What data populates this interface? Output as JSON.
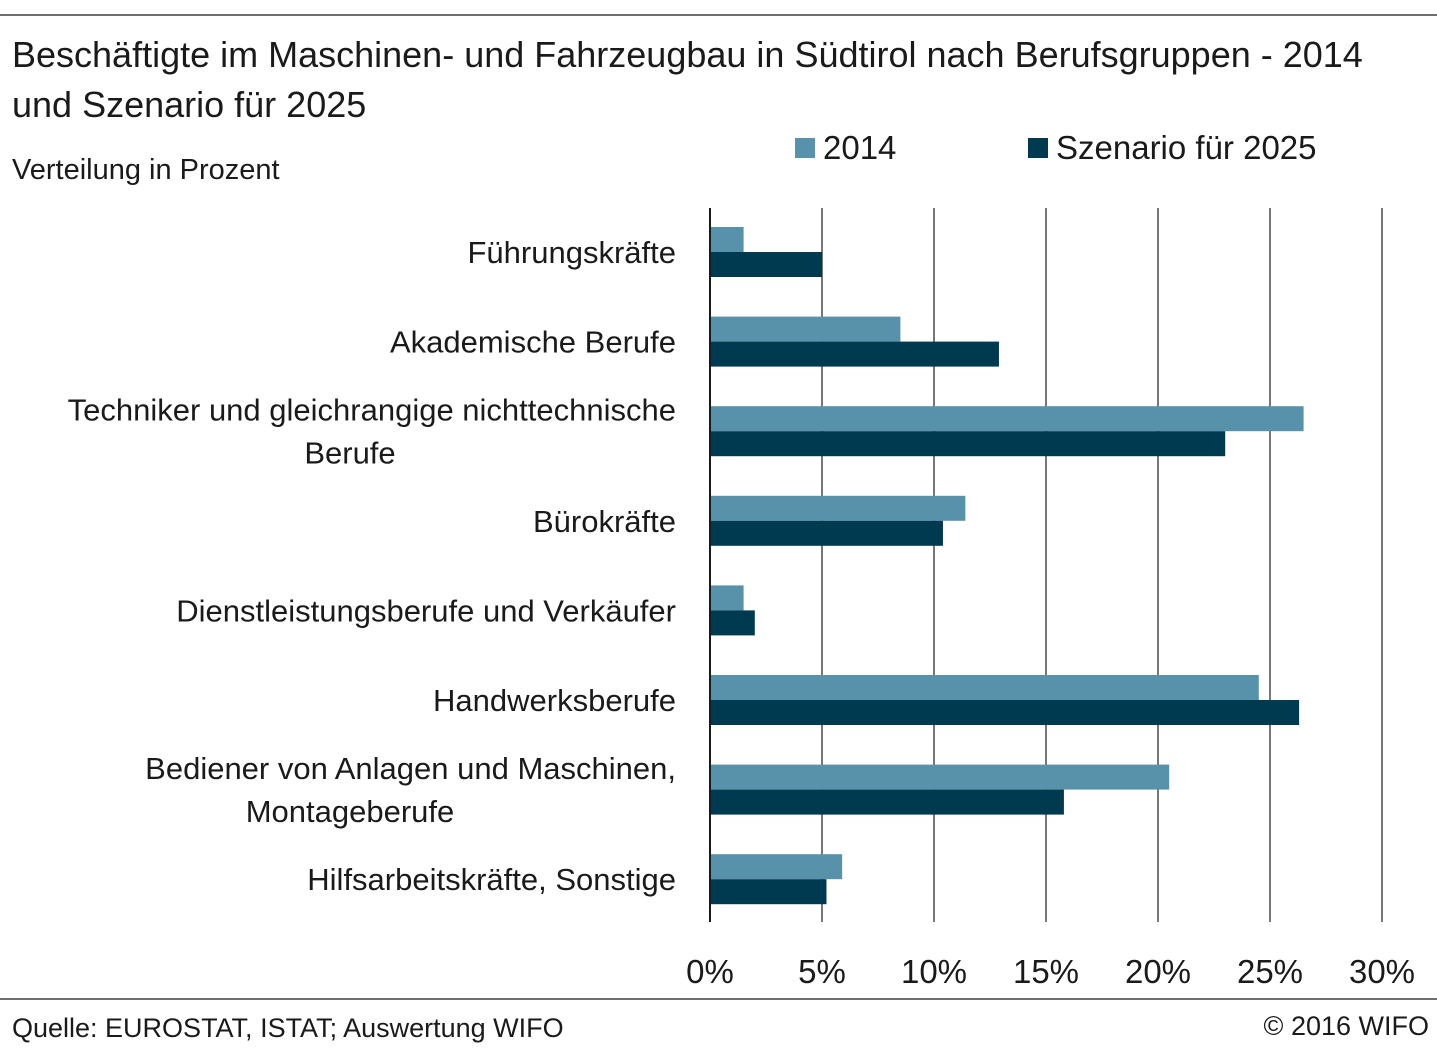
{
  "header": {
    "title": "Beschäftigte im Maschinen- und Fahrzeugbau in Südtirol nach Berufsgruppen - 2014 und Szenario für 2025",
    "subtitle": "Verteilung in Prozent"
  },
  "footer": {
    "source": "Quelle: EUROSTAT, ISTAT; Auswertung WIFO",
    "copyright": "© 2016 WIFO"
  },
  "colors": {
    "series_2014": "#5892aa",
    "series_2025": "#003a50",
    "grid": "#4a4a4a",
    "rule": "#6f6f6f"
  },
  "chart_data": {
    "type": "bar",
    "orientation": "horizontal",
    "title": "Beschäftigte im Maschinen- und Fahrzeugbau in Südtirol nach Berufsgruppen - 2014 und Szenario für 2025",
    "subtitle": "Verteilung in Prozent",
    "categories": [
      [
        "Führungskräfte"
      ],
      [
        "Akademische Berufe"
      ],
      [
        "Techniker und gleichrangige nichttechnische",
        "Berufe"
      ],
      [
        "Bürokräfte"
      ],
      [
        "Dienstleistungsberufe und Verkäufer"
      ],
      [
        "Handwerksberufe"
      ],
      [
        "Bediener von Anlagen und Maschinen,",
        "Montageberufe"
      ],
      [
        "Hilfsarbeitskräfte, Sonstige"
      ]
    ],
    "series": [
      {
        "name": "2014",
        "color": "#5892aa",
        "values": [
          1.5,
          8.5,
          26.5,
          11.4,
          1.5,
          24.5,
          20.5,
          5.9
        ]
      },
      {
        "name": "Szenario für 2025",
        "color": "#003a50",
        "values": [
          5.0,
          12.9,
          23.0,
          10.4,
          2.0,
          26.3,
          15.8,
          5.2
        ]
      }
    ],
    "xlim": [
      0,
      30
    ],
    "x_ticks": [
      0,
      5,
      10,
      15,
      20,
      25,
      30
    ],
    "x_tick_labels": [
      "0%",
      "5%",
      "10%",
      "15%",
      "20%",
      "25%",
      "30%"
    ],
    "xlabel": "",
    "ylabel": "",
    "grid": "vertical",
    "legend": "top-right"
  }
}
